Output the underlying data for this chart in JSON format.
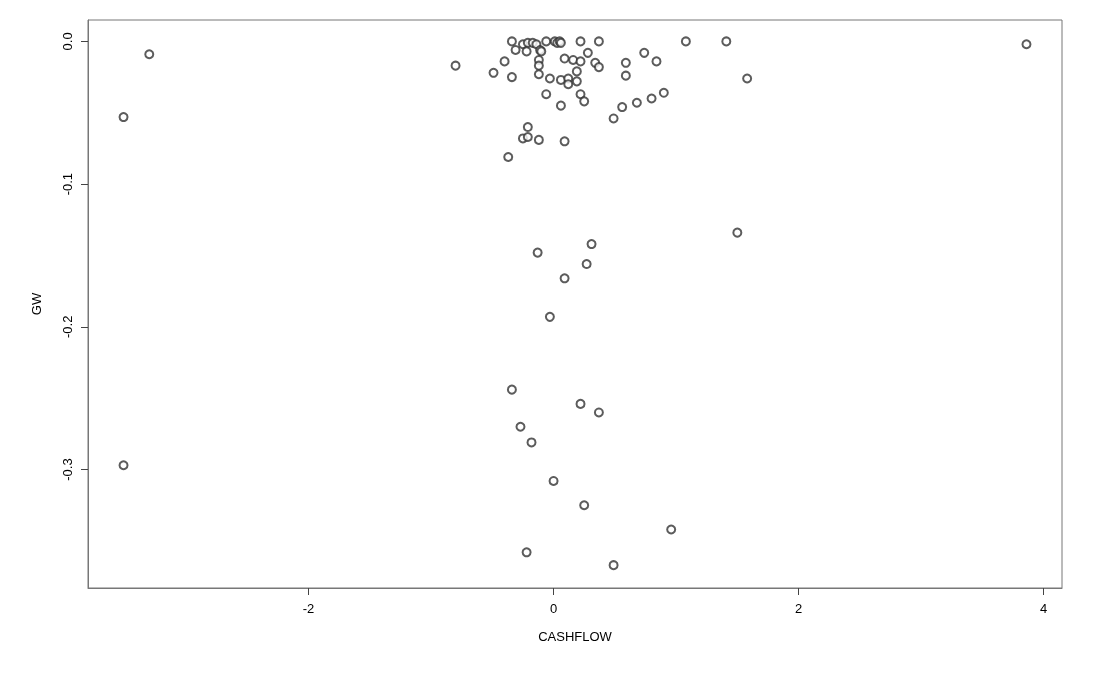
{
  "chart_data": {
    "type": "scatter",
    "xlabel": "CASHFLOW",
    "ylabel": "GW",
    "marker": "circle",
    "grid": false,
    "xlim": [
      -3.8,
      4.15
    ],
    "ylim": [
      -0.383,
      0.015
    ],
    "xticks": [
      -2,
      0,
      2,
      4
    ],
    "yticks": [
      {
        "value": 0,
        "label": "0.0"
      },
      -0.1,
      -0.2,
      -0.3
    ],
    "series": [
      {
        "color": "#333333",
        "x": [
          -3.51,
          -3.51,
          -3.3,
          -0.8,
          -0.34,
          -0.25,
          -0.21,
          -0.17,
          -0.14,
          -0.06,
          0.01,
          0.03,
          0.05,
          0.06,
          0.22,
          0.37,
          1.08,
          1.41,
          3.86,
          -0.31,
          -0.22,
          -0.11,
          -0.1,
          0.28,
          0.74,
          -0.4,
          -0.12,
          -0.12,
          0.09,
          0.16,
          0.22,
          0.34,
          0.37,
          0.59,
          0.84,
          -0.49,
          -0.34,
          -0.12,
          -0.03,
          0.06,
          0.12,
          0.12,
          0.19,
          0.19,
          0.59,
          1.58,
          -0.06,
          0.22,
          0.25,
          0.06,
          0.56,
          0.68,
          0.8,
          0.9,
          0.49,
          -0.21,
          -0.25,
          -0.21,
          -0.12,
          0.09,
          -0.37,
          -0.13,
          0.31,
          1.5,
          0.27,
          0.09,
          -0.03,
          -0.34,
          -0.27,
          0.22,
          0.37,
          -0.18,
          0,
          0.25,
          0.96,
          -0.22,
          0.49
        ],
        "values": [
          -0.053,
          -0.297,
          -0.009,
          -0.017,
          0,
          -0.002,
          -0.001,
          -0.001,
          -0.002,
          0,
          0,
          -0.001,
          0,
          -0.001,
          0,
          0,
          0,
          0,
          -0.002,
          -0.006,
          -0.007,
          -0.006,
          -0.007,
          -0.008,
          -0.008,
          -0.014,
          -0.013,
          -0.017,
          -0.012,
          -0.013,
          -0.014,
          -0.015,
          -0.018,
          -0.015,
          -0.014,
          -0.022,
          -0.025,
          -0.023,
          -0.026,
          -0.027,
          -0.026,
          -0.03,
          -0.021,
          -0.028,
          -0.024,
          -0.026,
          -0.037,
          -0.037,
          -0.042,
          -0.045,
          -0.046,
          -0.043,
          -0.04,
          -0.036,
          -0.054,
          -0.06,
          -0.068,
          -0.067,
          -0.069,
          -0.07,
          -0.081,
          -0.148,
          -0.142,
          -0.134,
          -0.156,
          -0.166,
          -0.193,
          -0.244,
          -0.27,
          -0.254,
          -0.26,
          -0.281,
          -0.308,
          -0.325,
          -0.342,
          -0.358,
          -0.367
        ]
      }
    ]
  }
}
